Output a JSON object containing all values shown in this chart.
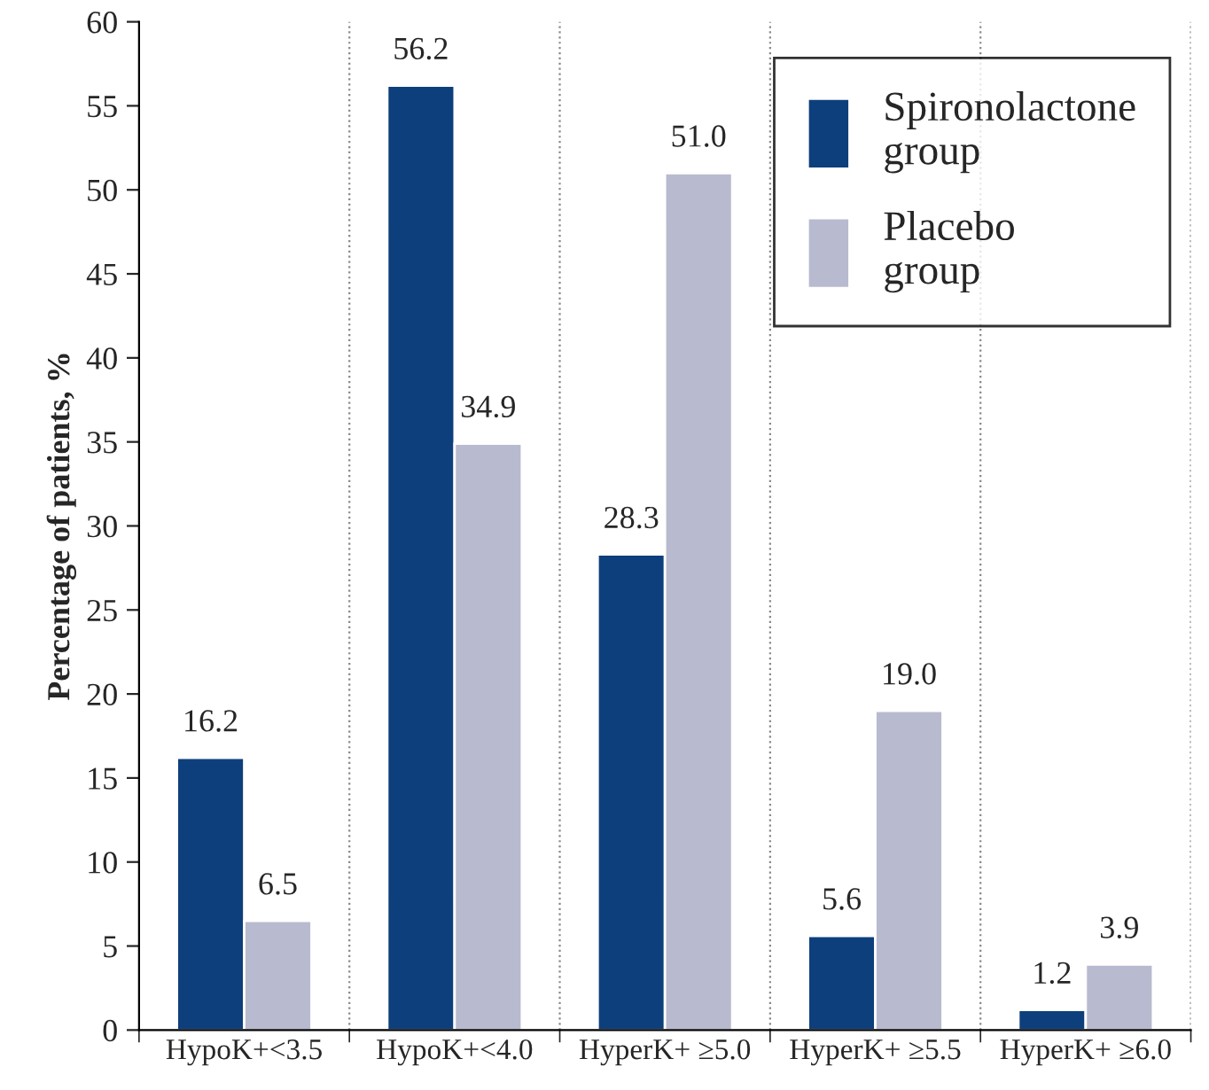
{
  "chart_data": {
    "type": "bar",
    "ylabel": "Percentage of patients, %",
    "categories": [
      "HypoK+<3.5",
      "HypoK+<4.0",
      "HyperK+ ≥5.0",
      "HyperK+ ≥5.5",
      "HyperK+ ≥6.0"
    ],
    "series": [
      {
        "name": "Spironolactone\ngroup",
        "color": "#0d3f7c",
        "values": [
          16.2,
          56.2,
          28.3,
          5.6,
          1.2
        ],
        "value_labels": [
          "16.2",
          "56.2",
          "28.3",
          "5.6",
          "1.2"
        ]
      },
      {
        "name": "Placebo\ngroup",
        "color": "#b8bacf",
        "values": [
          6.5,
          34.9,
          51.0,
          19.0,
          3.9
        ],
        "value_labels": [
          "6.5",
          "34.9",
          "51.0",
          "19.0",
          "3.9"
        ]
      }
    ],
    "ylim": [
      0,
      60
    ],
    "yticks": [
      0,
      5,
      10,
      15,
      20,
      25,
      30,
      35,
      40,
      45,
      50,
      55,
      60
    ],
    "grid": "x",
    "legend": "top right"
  }
}
